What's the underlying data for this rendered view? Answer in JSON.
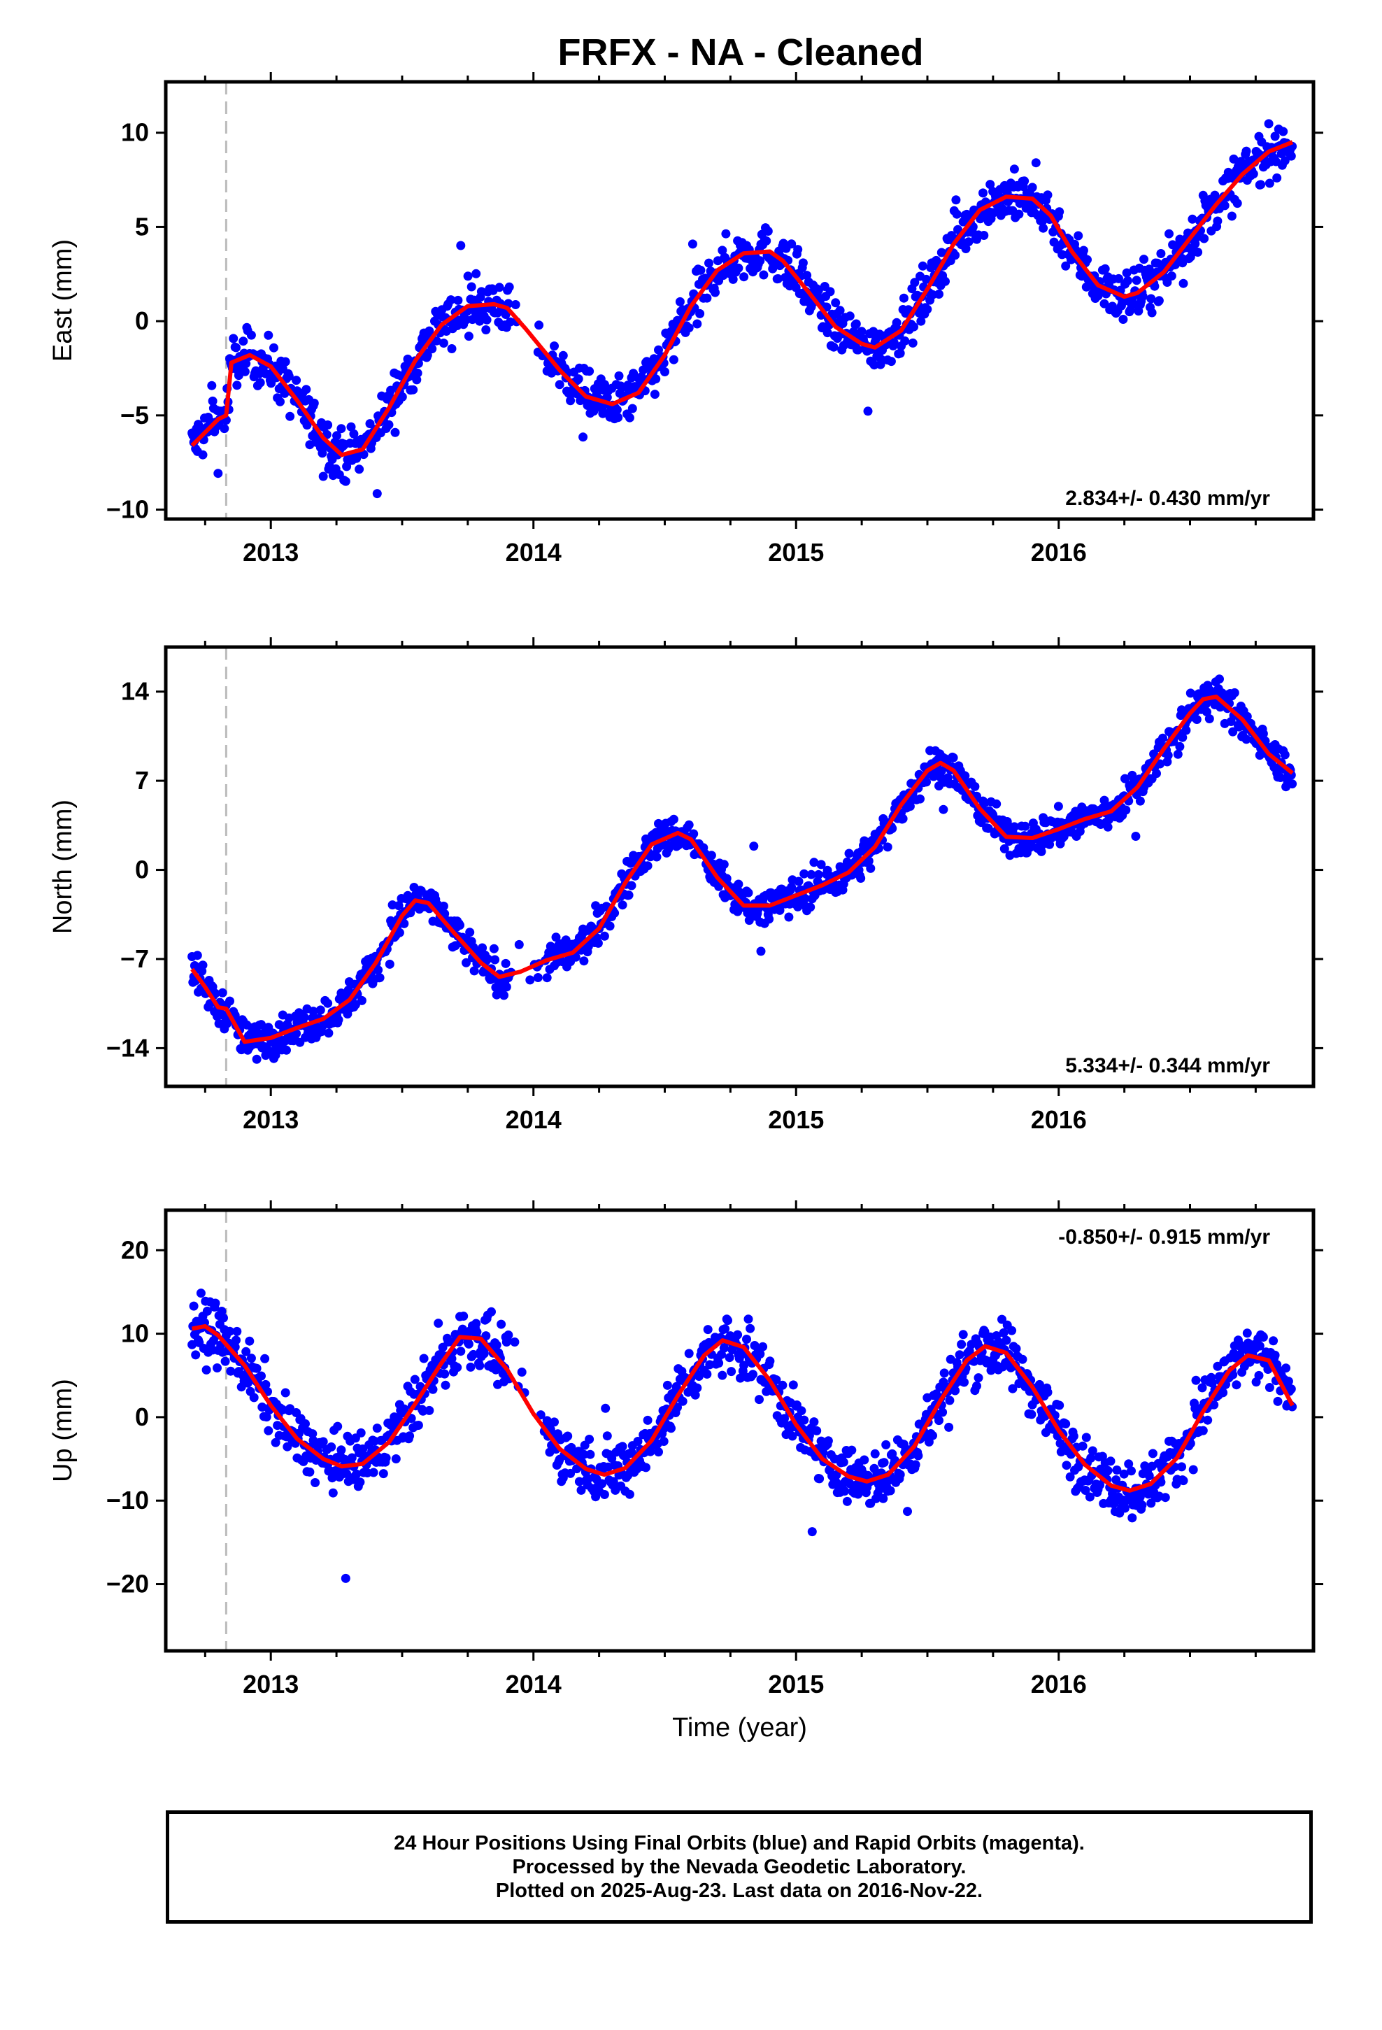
{
  "title": "FRFX  - NA - Cleaned",
  "footer": {
    "line1": "24 Hour Positions Using Final Orbits (blue) and Rapid Orbits (magenta).",
    "line2": "Processed by the Nevada Geodetic Laboratory.",
    "line3": "Plotted on 2025-Aug-23. Last data on 2016-Nov-22."
  },
  "colors": {
    "points": "#0000ff",
    "fit": "#ff0000",
    "event_line": "#bbbbbb",
    "frame": "#000000"
  },
  "chart_data": [
    {
      "type": "scatter",
      "ylabel": "East (mm)",
      "xlabel": "",
      "rate_label": "2.834+/- 0.430 mm/yr",
      "xlim": [
        2012.6,
        2016.97
      ],
      "ylim": [
        -10.5,
        12.7
      ],
      "x_ticks": [
        2013,
        2014,
        2015,
        2016
      ],
      "y_ticks": [
        -10,
        -5,
        0,
        5,
        10
      ],
      "event_line_x": 2012.83,
      "series": [
        {
          "role": "daily positions",
          "x_range": [
            2012.7,
            2016.89
          ],
          "trend": {
            "ref_x": 2012.7,
            "offset_at_event": 2.8,
            "base": -6.2,
            "rate": 2.834,
            "amp": 4.1,
            "peak_x": 2012.92
          },
          "scatter_mm": 1.0
        },
        {
          "role": "model fit",
          "x": [
            2012.7,
            2012.75,
            2012.8,
            2012.83,
            2012.85,
            2012.92,
            2013.0,
            2013.1,
            2013.2,
            2013.27,
            2013.35,
            2013.45,
            2013.55,
            2013.65,
            2013.75,
            2013.85,
            2013.9,
            2013.97,
            2014.1,
            2014.2,
            2014.3,
            2014.4,
            2014.5,
            2014.6,
            2014.7,
            2014.8,
            2014.9,
            2014.95,
            2015.05,
            2015.15,
            2015.25,
            2015.3,
            2015.4,
            2015.5,
            2015.6,
            2015.7,
            2015.8,
            2015.9,
            2015.97,
            2016.05,
            2016.15,
            2016.25,
            2016.3,
            2016.4,
            2016.5,
            2016.6,
            2016.7,
            2016.8,
            2016.89
          ],
          "y": [
            -6.6,
            -5.9,
            -5.2,
            -5.0,
            -2.2,
            -1.8,
            -2.4,
            -4.2,
            -6.2,
            -7.1,
            -6.8,
            -4.6,
            -2.1,
            -0.2,
            0.8,
            0.9,
            0.7,
            -0.4,
            -2.6,
            -4.0,
            -4.4,
            -3.8,
            -1.8,
            0.8,
            2.7,
            3.6,
            3.7,
            3.2,
            1.5,
            -0.3,
            -1.2,
            -1.4,
            -0.5,
            1.7,
            4.1,
            5.9,
            6.6,
            6.5,
            5.6,
            3.7,
            1.9,
            1.3,
            1.5,
            2.6,
            4.4,
            6.2,
            7.8,
            9.0,
            9.5
          ]
        }
      ]
    },
    {
      "type": "scatter",
      "ylabel": "North (mm)",
      "xlabel": "",
      "rate_label": "5.334+/- 0.344 mm/yr",
      "xlim": [
        2012.6,
        2016.97
      ],
      "ylim": [
        -17,
        17.5
      ],
      "x_ticks": [
        2013,
        2014,
        2015,
        2016
      ],
      "y_ticks": [
        -14,
        -7,
        0,
        7,
        14
      ],
      "event_line_x": 2012.83,
      "series": [
        {
          "role": "daily positions",
          "x_range": [
            2012.7,
            2016.89
          ],
          "scatter_mm": 1.1
        },
        {
          "role": "model fit",
          "x": [
            2012.7,
            2012.75,
            2012.8,
            2012.83,
            2012.9,
            2013.0,
            2013.1,
            2013.2,
            2013.3,
            2013.4,
            2013.5,
            2013.55,
            2013.6,
            2013.7,
            2013.8,
            2013.87,
            2013.95,
            2014.05,
            2014.15,
            2014.25,
            2014.35,
            2014.45,
            2014.55,
            2014.6,
            2014.7,
            2014.8,
            2014.9,
            2015.0,
            2015.1,
            2015.2,
            2015.3,
            2015.4,
            2015.5,
            2015.55,
            2015.6,
            2015.7,
            2015.8,
            2015.9,
            2016.0,
            2016.1,
            2016.2,
            2016.3,
            2016.4,
            2016.5,
            2016.55,
            2016.6,
            2016.7,
            2016.8,
            2016.89
          ],
          "y": [
            -7.8,
            -9.2,
            -10.8,
            -10.9,
            -13.5,
            -13.2,
            -12.4,
            -11.7,
            -10.2,
            -7.3,
            -3.6,
            -2.4,
            -2.6,
            -5.0,
            -7.3,
            -8.4,
            -8.0,
            -7.1,
            -6.5,
            -4.6,
            -1.0,
            2.0,
            2.9,
            2.4,
            -0.6,
            -2.8,
            -2.8,
            -2.0,
            -1.2,
            -0.2,
            1.8,
            5.1,
            7.8,
            8.4,
            7.8,
            4.8,
            2.6,
            2.5,
            3.2,
            4.0,
            4.6,
            6.5,
            9.5,
            12.3,
            13.4,
            13.6,
            11.8,
            9.1,
            7.6
          ]
        }
      ]
    },
    {
      "type": "scatter",
      "ylabel": "Up (mm)",
      "xlabel": "Time (year)",
      "rate_label": "-0.850+/- 0.915 mm/yr",
      "xlim": [
        2012.6,
        2016.97
      ],
      "ylim": [
        -28,
        24.8
      ],
      "x_ticks": [
        2013,
        2014,
        2015,
        2016
      ],
      "y_ticks": [
        -20,
        -10,
        0,
        10,
        20
      ],
      "event_line_x": 2012.83,
      "series": [
        {
          "role": "daily positions",
          "x_range": [
            2012.7,
            2016.89
          ],
          "scatter_mm": 2.6
        },
        {
          "role": "model fit",
          "x": [
            2012.7,
            2012.75,
            2012.8,
            2012.9,
            2013.0,
            2013.1,
            2013.2,
            2013.27,
            2013.35,
            2013.45,
            2013.55,
            2013.65,
            2013.72,
            2013.8,
            2013.9,
            2014.0,
            2014.1,
            2014.2,
            2014.27,
            2014.35,
            2014.45,
            2014.55,
            2014.65,
            2014.72,
            2014.8,
            2014.9,
            2015.0,
            2015.1,
            2015.2,
            2015.27,
            2015.35,
            2015.45,
            2015.55,
            2015.65,
            2015.72,
            2015.8,
            2015.9,
            2016.0,
            2016.1,
            2016.2,
            2016.27,
            2016.35,
            2016.45,
            2016.55,
            2016.65,
            2016.72,
            2016.8,
            2016.89
          ],
          "y": [
            10.6,
            10.9,
            9.8,
            6.2,
            1.4,
            -2.6,
            -5.0,
            -5.9,
            -5.6,
            -3.0,
            1.6,
            6.5,
            9.6,
            9.4,
            5.7,
            0.4,
            -3.8,
            -6.2,
            -6.9,
            -6.1,
            -2.8,
            2.6,
            7.4,
            9.2,
            8.4,
            4.4,
            -0.9,
            -5.0,
            -7.1,
            -7.7,
            -6.9,
            -3.5,
            2.0,
            6.8,
            8.5,
            7.7,
            3.6,
            -1.6,
            -5.7,
            -8.2,
            -8.8,
            -8.0,
            -4.9,
            0.7,
            5.6,
            7.4,
            6.8,
            1.4
          ]
        }
      ]
    }
  ]
}
